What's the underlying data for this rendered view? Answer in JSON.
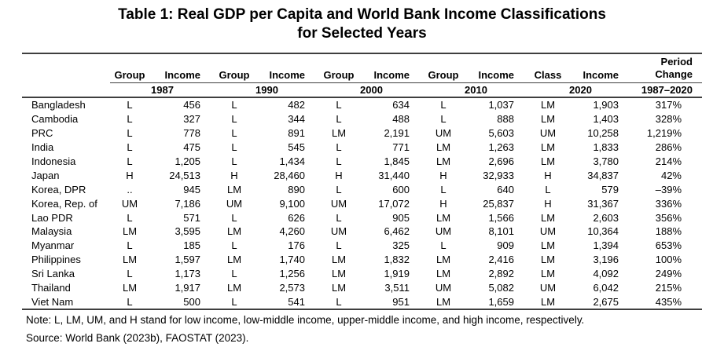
{
  "title": {
    "line1": "Table 1: Real GDP per Capita and World Bank Income Classifications",
    "line2": "for Selected Years"
  },
  "table": {
    "columns": {
      "groups": [
        {
          "head": "Group",
          "income_head": "Income",
          "year": "1987"
        },
        {
          "head": "Group",
          "income_head": "Income",
          "year": "1990"
        },
        {
          "head": "Group",
          "income_head": "Income",
          "year": "2000"
        },
        {
          "head": "Group",
          "income_head": "Income",
          "year": "2010"
        },
        {
          "head": "Class",
          "income_head": "Income",
          "year": "2020"
        }
      ],
      "period": {
        "line1": "Period",
        "line2": "Change",
        "year": "1987–2020"
      }
    },
    "rows": [
      {
        "country": "Bangladesh",
        "cells": [
          [
            "L",
            "456"
          ],
          [
            "L",
            "482"
          ],
          [
            "L",
            "634"
          ],
          [
            "L",
            "1,037"
          ],
          [
            "LM",
            "1,903"
          ]
        ],
        "change": "317%"
      },
      {
        "country": "Cambodia",
        "cells": [
          [
            "L",
            "327"
          ],
          [
            "L",
            "344"
          ],
          [
            "L",
            "488"
          ],
          [
            "L",
            "888"
          ],
          [
            "LM",
            "1,403"
          ]
        ],
        "change": "328%"
      },
      {
        "country": "PRC",
        "cells": [
          [
            "L",
            "778"
          ],
          [
            "L",
            "891"
          ],
          [
            "LM",
            "2,191"
          ],
          [
            "UM",
            "5,603"
          ],
          [
            "UM",
            "10,258"
          ]
        ],
        "change": "1,219%"
      },
      {
        "country": "India",
        "cells": [
          [
            "L",
            "475"
          ],
          [
            "L",
            "545"
          ],
          [
            "L",
            "771"
          ],
          [
            "LM",
            "1,263"
          ],
          [
            "LM",
            "1,833"
          ]
        ],
        "change": "286%"
      },
      {
        "country": "Indonesia",
        "cells": [
          [
            "L",
            "1,205"
          ],
          [
            "L",
            "1,434"
          ],
          [
            "L",
            "1,845"
          ],
          [
            "LM",
            "2,696"
          ],
          [
            "LM",
            "3,780"
          ]
        ],
        "change": "214%"
      },
      {
        "country": "Japan",
        "cells": [
          [
            "H",
            "24,513"
          ],
          [
            "H",
            "28,460"
          ],
          [
            "H",
            "31,440"
          ],
          [
            "H",
            "32,933"
          ],
          [
            "H",
            "34,837"
          ]
        ],
        "change": "42%"
      },
      {
        "country": "Korea, DPR",
        "cells": [
          [
            "..",
            "945"
          ],
          [
            "LM",
            "890"
          ],
          [
            "L",
            "600"
          ],
          [
            "L",
            "640"
          ],
          [
            "L",
            "579"
          ]
        ],
        "change": "–39%"
      },
      {
        "country": "Korea, Rep. of",
        "cells": [
          [
            "UM",
            "7,186"
          ],
          [
            "UM",
            "9,100"
          ],
          [
            "UM",
            "17,072"
          ],
          [
            "H",
            "25,837"
          ],
          [
            "H",
            "31,367"
          ]
        ],
        "change": "336%"
      },
      {
        "country": "Lao PDR",
        "cells": [
          [
            "L",
            "571"
          ],
          [
            "L",
            "626"
          ],
          [
            "L",
            "905"
          ],
          [
            "LM",
            "1,566"
          ],
          [
            "LM",
            "2,603"
          ]
        ],
        "change": "356%"
      },
      {
        "country": "Malaysia",
        "cells": [
          [
            "LM",
            "3,595"
          ],
          [
            "LM",
            "4,260"
          ],
          [
            "UM",
            "6,462"
          ],
          [
            "UM",
            "8,101"
          ],
          [
            "UM",
            "10,364"
          ]
        ],
        "change": "188%"
      },
      {
        "country": "Myanmar",
        "cells": [
          [
            "L",
            "185"
          ],
          [
            "L",
            "176"
          ],
          [
            "L",
            "325"
          ],
          [
            "L",
            "909"
          ],
          [
            "LM",
            "1,394"
          ]
        ],
        "change": "653%"
      },
      {
        "country": "Philippines",
        "cells": [
          [
            "LM",
            "1,597"
          ],
          [
            "LM",
            "1,740"
          ],
          [
            "LM",
            "1,832"
          ],
          [
            "LM",
            "2,416"
          ],
          [
            "LM",
            "3,196"
          ]
        ],
        "change": "100%"
      },
      {
        "country": "Sri Lanka",
        "cells": [
          [
            "L",
            "1,173"
          ],
          [
            "L",
            "1,256"
          ],
          [
            "LM",
            "1,919"
          ],
          [
            "LM",
            "2,892"
          ],
          [
            "LM",
            "4,092"
          ]
        ],
        "change": "249%"
      },
      {
        "country": "Thailand",
        "cells": [
          [
            "LM",
            "1,917"
          ],
          [
            "LM",
            "2,573"
          ],
          [
            "LM",
            "3,511"
          ],
          [
            "UM",
            "5,082"
          ],
          [
            "UM",
            "6,042"
          ]
        ],
        "change": "215%"
      },
      {
        "country": "Viet Nam",
        "cells": [
          [
            "L",
            "500"
          ],
          [
            "L",
            "541"
          ],
          [
            "L",
            "951"
          ],
          [
            "LM",
            "1,659"
          ],
          [
            "LM",
            "2,675"
          ]
        ],
        "change": "435%"
      }
    ]
  },
  "note": "Note: L, LM, UM, and H stand for low income, low-middle income, upper-middle income, and high income, respectively.",
  "source": "Source: World Bank (2023b), FAOSTAT (2023)."
}
